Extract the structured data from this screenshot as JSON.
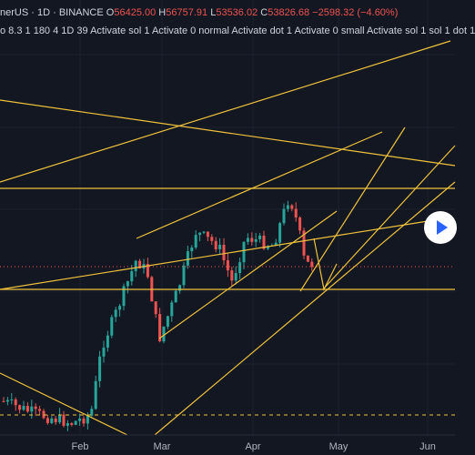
{
  "header": {
    "symbol": "nerUS",
    "interval": "1D",
    "exchange": "BINANCE",
    "ohlc": [
      {
        "key": "O",
        "value": "56425.00"
      },
      {
        "key": "H",
        "value": "56757.91"
      },
      {
        "key": "L",
        "value": "53536.02"
      },
      {
        "key": "C",
        "value": "53826.68"
      }
    ],
    "change": "−2598.32 (−4.60%)",
    "indicators": "o 8.3 1 180 4 1D 39 Activate sol 1 Activate 0 normal Activate dot 1 Activate 0 small Activate sol 1 sol 1 dot 1"
  },
  "x_axis": {
    "labels": [
      "Feb",
      "Mar",
      "Apr",
      "May",
      "Jun"
    ]
  }
}
